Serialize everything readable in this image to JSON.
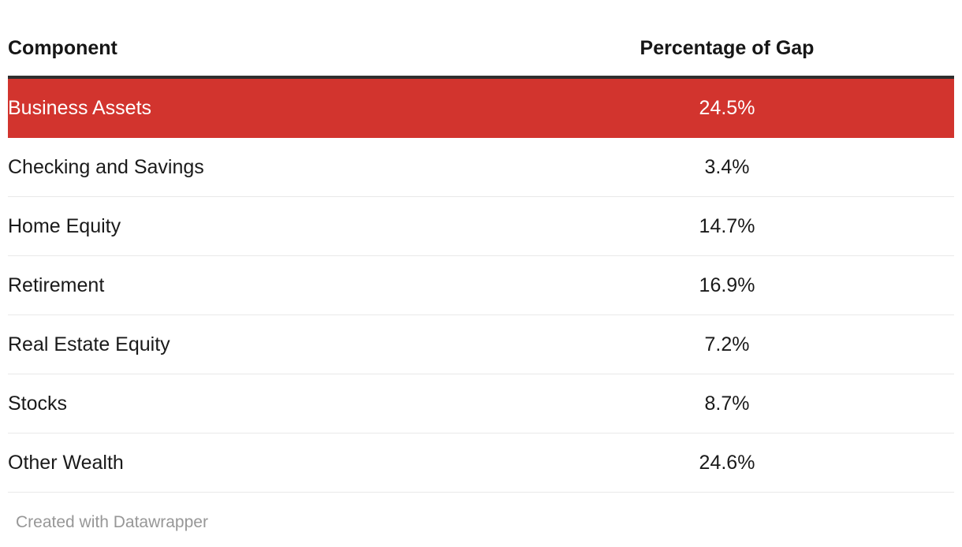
{
  "chart_data": {
    "type": "table",
    "title": "",
    "columns": [
      "Component",
      "Percentage of Gap"
    ],
    "categories": [
      "Business Assets",
      "Checking and Savings",
      "Home Equity",
      "Retirement",
      "Real Estate Equity",
      "Stocks",
      "Other Wealth"
    ],
    "values": [
      24.5,
      3.4,
      14.7,
      16.9,
      7.2,
      8.7,
      24.6
    ],
    "value_format": "percent",
    "highlighted_category": "Business Assets",
    "layout_hints": {
      "value_column_align": "center",
      "header_rule": true,
      "row_dividers": true
    }
  },
  "table": {
    "header": {
      "component": "Component",
      "value": "Percentage of Gap"
    },
    "rows": [
      {
        "component": "Business Assets",
        "value": "24.5%",
        "highlighted": true
      },
      {
        "component": "Checking and Savings",
        "value": "3.4%",
        "highlighted": false
      },
      {
        "component": "Home Equity",
        "value": "14.7%",
        "highlighted": false
      },
      {
        "component": "Retirement",
        "value": "16.9%",
        "highlighted": false
      },
      {
        "component": "Real Estate Equity",
        "value": "7.2%",
        "highlighted": false
      },
      {
        "component": "Stocks",
        "value": "8.7%",
        "highlighted": false
      },
      {
        "component": "Other Wealth",
        "value": "24.6%",
        "highlighted": false
      }
    ]
  },
  "footer": {
    "attribution": "Created with Datawrapper"
  },
  "colors": {
    "highlight": "#d2342e",
    "highlight_text": "#ffffff",
    "header_rule": "#2e2e2e",
    "row_divider": "#e9e9e9",
    "text": "#1a1a1a",
    "header_text": "#161616",
    "footer_text": "#979797",
    "bg": "#ffffff"
  }
}
